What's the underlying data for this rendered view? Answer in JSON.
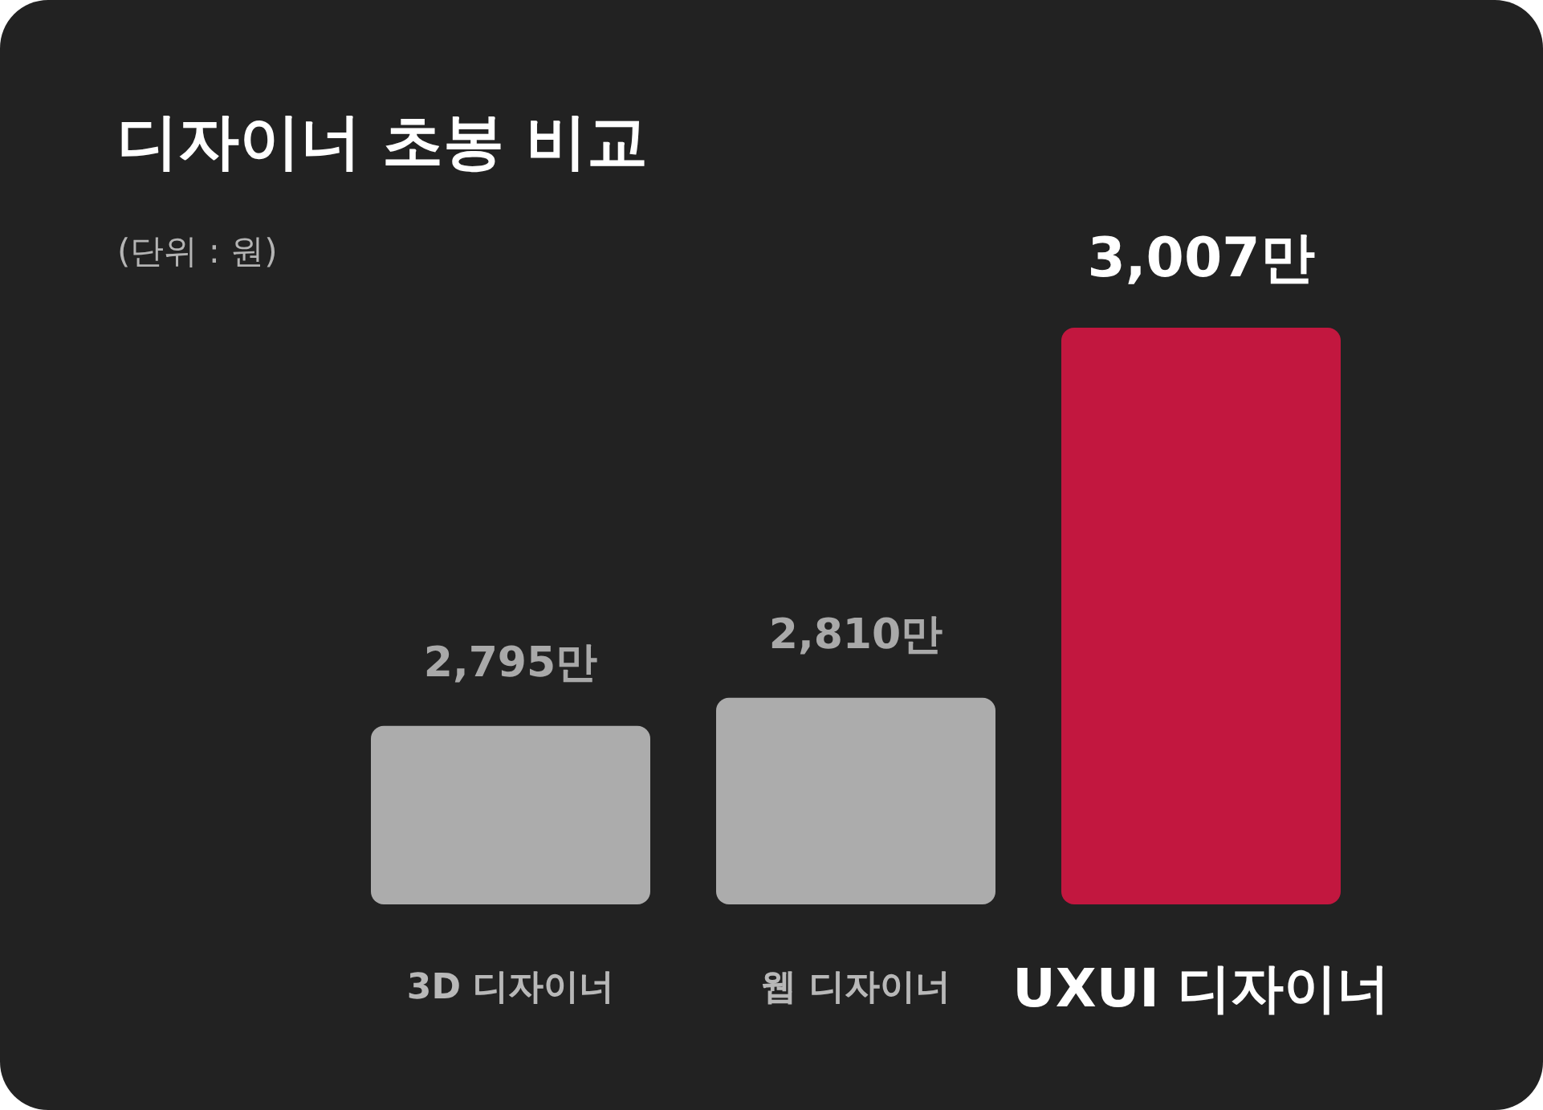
{
  "chart_data": {
    "type": "bar",
    "title": "디자이너 초봉 비교",
    "subtitle": "(단위 : 원)",
    "categories": [
      "3D 디자이너",
      "웹 디자이너",
      "UXUI 디자이너"
    ],
    "values": [
      2795,
      2810,
      3007
    ],
    "colors": [
      "#acacac",
      "#acacac",
      "#c2173f"
    ],
    "value_labels": [
      "2,795만",
      "2,810만",
      "3,007만"
    ],
    "ylim": [
      2700,
      3007
    ]
  }
}
